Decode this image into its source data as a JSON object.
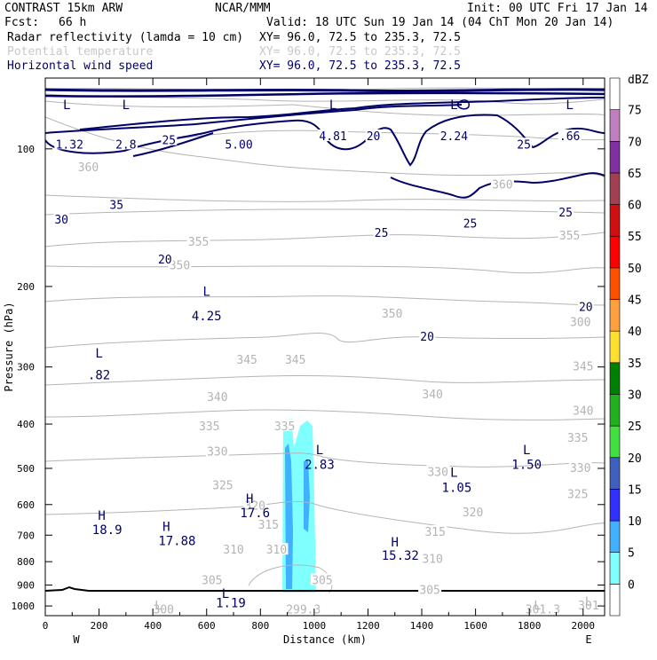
{
  "header": {
    "title": "CONTRAST 15km ARW",
    "center": "NCAR/MMM",
    "init": "Init: 00 UTC Fri 17 Jan 14",
    "fcst_label": "Fcst:",
    "fcst_value": "66 h",
    "valid": "Valid: 18 UTC Sun 19 Jan 14 (04 ChT Mon 20 Jan 14)",
    "fields": [
      {
        "name": "Radar reflectivity (lamda = 10 cm)",
        "xy": "XY=  96.0, 72.5 to 235.3, 72.5",
        "color": "#000000"
      },
      {
        "name": "Potential temperature",
        "xy": "XY=  96.0, 72.5 to 235.3, 72.5",
        "color": "#c8c8c8"
      },
      {
        "name": "Horizontal wind speed",
        "xy": "XY=  96.0, 72.5 to 235.3, 72.5",
        "color": "#000066"
      }
    ]
  },
  "chart_data": {
    "type": "contour",
    "xlabel": "Distance (km)",
    "ylabel": "Pressure (hPa)",
    "x_range": [
      0,
      2080
    ],
    "y_range_hpa": [
      1050,
      70
    ],
    "y_log": true,
    "x_ticks": [
      0,
      200,
      400,
      600,
      800,
      1000,
      1200,
      1400,
      1600,
      1800,
      2000
    ],
    "y_ticks": [
      100,
      200,
      300,
      400,
      500,
      600,
      700,
      800,
      900,
      1000
    ],
    "x_end_labels": {
      "left": "W",
      "right": "E"
    },
    "colorbar": {
      "unit": "dBZ",
      "levels": [
        0,
        5,
        10,
        15,
        20,
        25,
        30,
        35,
        40,
        45,
        50,
        55,
        60,
        65,
        70,
        75
      ],
      "colors": [
        "#ffffff",
        "#80ffff",
        "#40b0ff",
        "#3030ff",
        "#4060c0",
        "#40e040",
        "#20b020",
        "#008000",
        "#ffe030",
        "#ffa040",
        "#ff5000",
        "#ff0000",
        "#d01010",
        "#a04050",
        "#8030a0",
        "#c080c0",
        "#ffffff"
      ]
    },
    "theta_labels": [
      {
        "text": "360",
        "x": 160,
        "p": 110
      },
      {
        "text": "355",
        "x": 570,
        "p": 160
      },
      {
        "text": "360",
        "x": 1700,
        "p": 120
      },
      {
        "text": "355",
        "x": 1950,
        "p": 155
      },
      {
        "text": "350",
        "x": 500,
        "p": 180
      },
      {
        "text": "350",
        "x": 1290,
        "p": 230
      },
      {
        "text": "300",
        "x": 1990,
        "p": 240
      },
      {
        "text": "345",
        "x": 750,
        "p": 290
      },
      {
        "text": "345",
        "x": 930,
        "p": 290
      },
      {
        "text": "345",
        "x": 2000,
        "p": 300
      },
      {
        "text": "340",
        "x": 640,
        "p": 350
      },
      {
        "text": "340",
        "x": 1440,
        "p": 345
      },
      {
        "text": "340",
        "x": 2000,
        "p": 375
      },
      {
        "text": "335",
        "x": 610,
        "p": 405
      },
      {
        "text": "335",
        "x": 890,
        "p": 405
      },
      {
        "text": "335",
        "x": 1980,
        "p": 430
      },
      {
        "text": "330",
        "x": 640,
        "p": 460
      },
      {
        "text": "330",
        "x": 1460,
        "p": 510
      },
      {
        "text": "330",
        "x": 1990,
        "p": 500
      },
      {
        "text": "325",
        "x": 660,
        "p": 545
      },
      {
        "text": "325",
        "x": 1980,
        "p": 570
      },
      {
        "text": "320",
        "x": 780,
        "p": 605
      },
      {
        "text": "320",
        "x": 1590,
        "p": 625
      },
      {
        "text": "315",
        "x": 830,
        "p": 665
      },
      {
        "text": "315",
        "x": 1450,
        "p": 690
      },
      {
        "text": "310",
        "x": 700,
        "p": 755
      },
      {
        "text": "310",
        "x": 860,
        "p": 755
      },
      {
        "text": "310",
        "x": 1440,
        "p": 790
      },
      {
        "text": "305",
        "x": 620,
        "p": 880
      },
      {
        "text": "305",
        "x": 1030,
        "p": 880
      },
      {
        "text": "305",
        "x": 1430,
        "p": 925
      },
      {
        "text": "300",
        "x": 440,
        "p": 1020
      },
      {
        "text": "299.3",
        "x": 960,
        "p": 1020
      },
      {
        "text": "301.3",
        "x": 1850,
        "p": 1020
      },
      {
        "text": "301",
        "x": 2020,
        "p": 1000
      }
    ],
    "theta_low_high": [
      {
        "text": "L",
        "x": 420,
        "p": 1000
      },
      {
        "text": "L",
        "x": 1830,
        "p": 1000
      },
      {
        "text": "L",
        "x": 2020,
        "p": 980
      }
    ],
    "wind_labels": [
      {
        "text": "1.32",
        "x": 90,
        "p": 98
      },
      {
        "text": "2.8",
        "x": 300,
        "p": 98
      },
      {
        "text": "25",
        "x": 460,
        "p": 96
      },
      {
        "text": "5.00",
        "x": 720,
        "p": 98
      },
      {
        "text": "4.81",
        "x": 1070,
        "p": 94
      },
      {
        "text": "20",
        "x": 1220,
        "p": 94
      },
      {
        "text": "2.24",
        "x": 1520,
        "p": 94
      },
      {
        "text": "25",
        "x": 1780,
        "p": 98
      },
      {
        "text": ".66",
        "x": 1950,
        "p": 94
      },
      {
        "text": "35",
        "x": 265,
        "p": 133
      },
      {
        "text": "30",
        "x": 60,
        "p": 143
      },
      {
        "text": "20",
        "x": 445,
        "p": 175
      },
      {
        "text": "25",
        "x": 1250,
        "p": 153
      },
      {
        "text": "25",
        "x": 1580,
        "p": 146
      },
      {
        "text": "25",
        "x": 1935,
        "p": 138
      },
      {
        "text": "20",
        "x": 2010,
        "p": 222
      },
      {
        "text": "20",
        "x": 1420,
        "p": 258
      }
    ],
    "wind_low_high": [
      {
        "text": "L",
        "x": 80,
        "p": 80
      },
      {
        "text": "L",
        "x": 300,
        "p": 80
      },
      {
        "text": "L",
        "x": 1070,
        "p": 80
      },
      {
        "text": "L",
        "x": 1520,
        "p": 80
      },
      {
        "text": "L",
        "x": 1950,
        "p": 80
      },
      {
        "text": "L",
        "x": 600,
        "p": 205
      },
      {
        "text": "4.25",
        "x": 600,
        "p": 232
      },
      {
        "text": "L",
        "x": 200,
        "p": 280
      },
      {
        "text": ".82",
        "x": 200,
        "p": 312
      },
      {
        "text": "L",
        "x": 1020,
        "p": 455
      },
      {
        "text": "2.83",
        "x": 1020,
        "p": 490
      },
      {
        "text": "L",
        "x": 1520,
        "p": 510
      },
      {
        "text": "1.05",
        "x": 1530,
        "p": 550
      },
      {
        "text": "L",
        "x": 1790,
        "p": 455
      },
      {
        "text": "1.50",
        "x": 1790,
        "p": 490
      },
      {
        "text": "H",
        "x": 760,
        "p": 582
      },
      {
        "text": "17.6",
        "x": 780,
        "p": 625
      },
      {
        "text": "H",
        "x": 210,
        "p": 633
      },
      {
        "text": "18.9",
        "x": 230,
        "p": 680
      },
      {
        "text": "H",
        "x": 450,
        "p": 670
      },
      {
        "text": "17.88",
        "x": 490,
        "p": 720
      },
      {
        "text": "H",
        "x": 1300,
        "p": 725
      },
      {
        "text": "15.32",
        "x": 1320,
        "p": 775
      },
      {
        "text": "L",
        "x": 670,
        "p": 940
      },
      {
        "text": "1.19",
        "x": 690,
        "p": 985
      }
    ]
  }
}
